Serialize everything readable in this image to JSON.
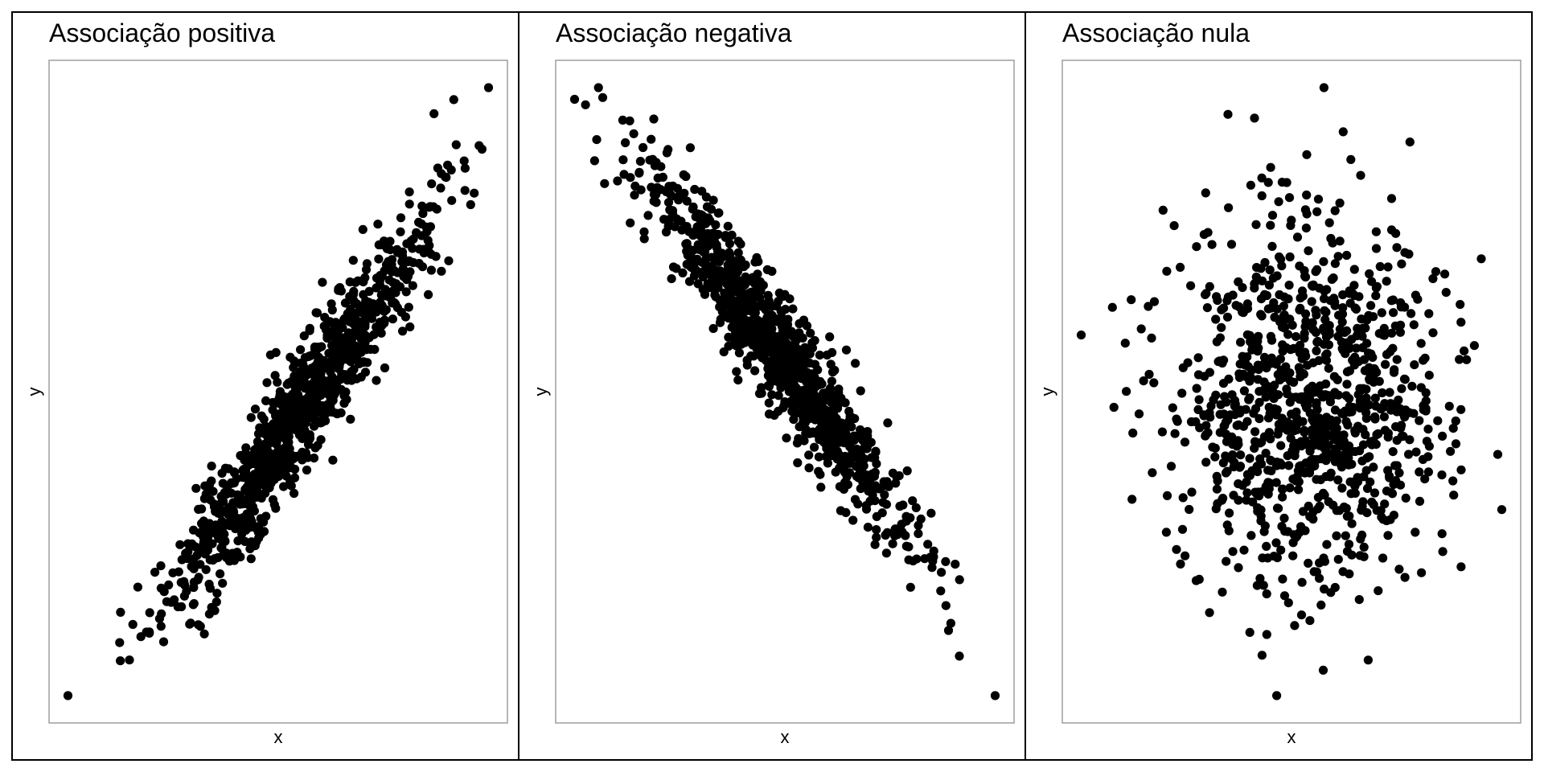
{
  "chart_data": [
    {
      "type": "scatter",
      "title": "Associação positiva",
      "xlabel": "x",
      "ylabel": "y",
      "n": 1000,
      "correlation": 0.95,
      "grid": false,
      "axis_ticks": false,
      "marker_color": "#000000",
      "seed": 11
    },
    {
      "type": "scatter",
      "title": "Associação negativa",
      "xlabel": "x",
      "ylabel": "y",
      "n": 1000,
      "correlation": -0.95,
      "grid": false,
      "axis_ticks": false,
      "marker_color": "#000000",
      "seed": 23
    },
    {
      "type": "scatter",
      "title": "Associação nula",
      "xlabel": "x",
      "ylabel": "y",
      "n": 1000,
      "correlation": 0.0,
      "grid": false,
      "axis_ticks": false,
      "marker_color": "#000000",
      "seed": 37
    }
  ]
}
